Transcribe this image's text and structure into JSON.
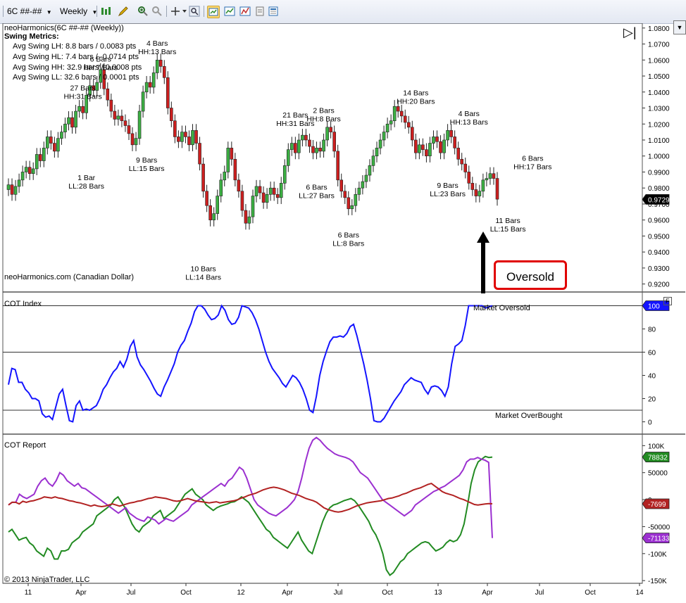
{
  "toolbar": {
    "instrument": "6C ##-##",
    "period": "Weekly",
    "icons": [
      "bar-type-icon",
      "pencil-icon",
      "zoom-in-icon",
      "zoom-out-icon",
      "crosshair-icon",
      "search-icon",
      "properties-icon",
      "data-box-icon",
      "strategy-icon",
      "print-icon"
    ]
  },
  "colors": {
    "up_candle": "#3cb043",
    "down_candle": "#cc1f1f",
    "cot_index_line": "#1414ff",
    "commercials": "#228b22",
    "noncommercials": "#9b30d0",
    "small_specs": "#b22222",
    "callout_border": "#e00000"
  },
  "price_panel": {
    "title": "neoHarmonics(6C ##-## (Weekly))",
    "metrics_title": "Swing Metrics:",
    "metrics": [
      "Avg Swing LH: 8.8 bars / 0.0083 pts",
      "Avg Swing HL: 7.4 bars / -0.0714 pts",
      "Avg Swing HH: 32.9 bars / 0.0008 pts",
      "Avg Swing LL: 32.6 bars / 0.0001 pts"
    ],
    "footer": "neoHarmonics.com (Canadian Dollar)",
    "last_price": "0.9729",
    "callout": "Oversold"
  },
  "cot_index_panel": {
    "title": "COT Index",
    "label_oversold": "Market Oversold",
    "label_overbought": "Market OverBought",
    "last_value": "100",
    "f_box": "F"
  },
  "cot_report_panel": {
    "title": "COT Report",
    "copyright": "© 2013 NinjaTrader, LLC",
    "last_values": [
      "78832",
      "-7699",
      "-71133"
    ]
  },
  "chart_data": [
    {
      "type": "candlestick",
      "title": "neoHarmonics(6C ##-## (Weekly))",
      "y_axis_ticks": [
        "1.0800",
        "1.0700",
        "1.0600",
        "1.0500",
        "1.0400",
        "1.0300",
        "1.0200",
        "1.0100",
        "1.0000",
        "0.9900",
        "0.9800",
        "0.9700",
        "0.9600",
        "0.9500",
        "0.9400",
        "0.9300",
        "0.9200"
      ],
      "ylim": [
        0.915,
        1.083
      ],
      "x_axis_ticks": [
        "11",
        "Apr",
        "Jul",
        "Oct",
        "12",
        "Apr",
        "Jul",
        "Oct",
        "13",
        "Apr",
        "Jul",
        "Oct",
        "14"
      ],
      "closes": [
        0.982,
        0.976,
        0.981,
        0.985,
        0.99,
        0.993,
        0.989,
        0.992,
        1.001,
        0.997,
        1.005,
        1.012,
        1.008,
        1.003,
        1.011,
        1.015,
        1.02,
        1.024,
        1.018,
        1.028,
        1.031,
        1.027,
        1.038,
        1.044,
        1.041,
        1.046,
        1.054,
        1.042,
        1.035,
        1.028,
        1.023,
        1.025,
        1.022,
        1.019,
        1.014,
        1.007,
        1.011,
        1.028,
        1.04,
        1.046,
        1.043,
        1.052,
        1.06,
        1.056,
        1.049,
        1.03,
        1.022,
        1.012,
        1.009,
        1.015,
        1.012,
        1.007,
        1.016,
        1.008,
        0.995,
        0.978,
        0.969,
        0.96,
        0.964,
        0.975,
        0.985,
        0.99,
        1.005,
        0.998,
        0.985,
        0.978,
        0.966,
        0.958,
        0.962,
        0.975,
        0.981,
        0.977,
        0.971,
        0.976,
        0.98,
        0.976,
        0.974,
        0.983,
        0.994,
        1.004,
        1.008,
        1.002,
        1.01,
        1.013,
        1.01,
        1.006,
        1.002,
        1.005,
        1.003,
        1.01,
        1.018,
        1.015,
        1.003,
        0.985,
        0.978,
        0.974,
        0.967,
        0.969,
        0.976,
        0.98,
        0.984,
        0.988,
        0.994,
        1.0,
        1.005,
        1.01,
        1.015,
        1.02,
        1.022,
        1.031,
        1.028,
        1.025,
        1.021,
        1.018,
        1.01,
        1.002,
        1.007,
        1.004,
        1.0,
        1.008,
        1.012,
        1.009,
        1.002,
        1.01,
        1.016,
        1.012,
        1.005,
        0.998,
        0.995,
        0.99,
        0.983,
        0.979,
        0.975,
        0.978,
        0.985,
        0.986,
        0.989,
        0.986,
        0.973
      ],
      "swing_labels": [
        {
          "line1": "27 Bars",
          "line2": "HH:31 Bars",
          "price": 1.041,
          "bar": 21
        },
        {
          "line1": "6 Bars",
          "line2": "HH:7 Bars",
          "price": 1.059,
          "bar": 26
        },
        {
          "line1": "4 Bars",
          "line2": "HH:13 Bars",
          "price": 1.069,
          "bar": 42
        },
        {
          "line1": "1 Bar",
          "line2": "LL:28 Bars",
          "price": 0.985,
          "bar": 22
        },
        {
          "line1": "9 Bars",
          "line2": "LL:15 Bars",
          "price": 0.996,
          "bar": 39
        },
        {
          "line1": "10 Bars",
          "line2": "LL:14 Bars",
          "price": 0.928,
          "bar": 55
        },
        {
          "line1": "21 Bars",
          "line2": "HH:31 Bars",
          "price": 1.024,
          "bar": 81
        },
        {
          "line1": "2 Bars",
          "line2": "HH:8 Bars",
          "price": 1.027,
          "bar": 89
        },
        {
          "line1": "6 Bars",
          "line2": "LL:27 Bars",
          "price": 0.979,
          "bar": 87
        },
        {
          "line1": "6 Bars",
          "line2": "LL:8 Bars",
          "price": 0.949,
          "bar": 96
        },
        {
          "line1": "14 Bars",
          "line2": "HH:20 Bars",
          "price": 1.038,
          "bar": 115
        },
        {
          "line1": "9 Bars",
          "line2": "LL:23 Bars",
          "price": 0.98,
          "bar": 124
        },
        {
          "line1": "4 Bars",
          "line2": "HH:13 Bars",
          "price": 1.025,
          "bar": 130
        },
        {
          "line1": "6 Bars",
          "line2": "HH:17 Bars",
          "price": 0.997,
          "bar": 148
        },
        {
          "line1": "11 Bars",
          "line2": "LL:15 Bars",
          "price": 0.958,
          "bar": 141
        }
      ]
    },
    {
      "type": "line",
      "title": "COT Index",
      "y_axis_ticks": [
        "100",
        "80",
        "60",
        "40",
        "20",
        "0"
      ],
      "ylim": [
        -10,
        110
      ],
      "levels": [
        100,
        60,
        10
      ],
      "series": [
        {
          "values": [
            32,
            46,
            45,
            34,
            34,
            28,
            25,
            20,
            20,
            18,
            7,
            4,
            5,
            2,
            13,
            24,
            28,
            14,
            1,
            0,
            14,
            18,
            10,
            11,
            10,
            12,
            14,
            20,
            28,
            32,
            38,
            43,
            46,
            52,
            47,
            54,
            65,
            70,
            56,
            49,
            45,
            40,
            35,
            29,
            24,
            22,
            30,
            36,
            43,
            50,
            60,
            66,
            70,
            78,
            85,
            95,
            100,
            100,
            97,
            92,
            88,
            89,
            92,
            100,
            96,
            88,
            84,
            85,
            90,
            100,
            99,
            98,
            94,
            88,
            80,
            70,
            60,
            52,
            46,
            42,
            38,
            33,
            30,
            35,
            40,
            38,
            34,
            28,
            20,
            10,
            8,
            22,
            40,
            52,
            61,
            69,
            73,
            73,
            74,
            73,
            76,
            82,
            84,
            74,
            62,
            50,
            36,
            20,
            1,
            0,
            0,
            3,
            8,
            13,
            18,
            22,
            26,
            32,
            35,
            38,
            36,
            35,
            34,
            28,
            24,
            30,
            31,
            30,
            27,
            22,
            30,
            50,
            65,
            67,
            70,
            83,
            100,
            100,
            100,
            100,
            100,
            98,
            99,
            100
          ]
        }
      ]
    },
    {
      "type": "line",
      "title": "COT Report",
      "y_axis_ticks": [
        "100K",
        "50000",
        "0",
        "-50000",
        "-100K",
        "-150K"
      ],
      "ylim": [
        -155000,
        120000
      ],
      "series": [
        {
          "values": [
            -60000,
            -55000,
            -65000,
            -75000,
            -72000,
            -70000,
            -80000,
            -85000,
            -95000,
            -100000,
            -105000,
            -90000,
            -95000,
            -110000,
            -110000,
            -95000,
            -95000,
            -92000,
            -80000,
            -75000,
            -70000,
            -60000,
            -55000,
            -50000,
            -45000,
            -30000,
            -25000,
            -20000,
            -15000,
            -10000,
            0,
            5000,
            -5000,
            -15000,
            -30000,
            -45000,
            -55000,
            -60000,
            -50000,
            -45000,
            -40000,
            -30000,
            -25000,
            -20000,
            -35000,
            -30000,
            -25000,
            -20000,
            -10000,
            0,
            10000,
            15000,
            20000,
            10000,
            5000,
            0,
            -10000,
            -15000,
            -20000,
            -15000,
            -12000,
            -10000,
            -8000,
            -5000,
            -4000,
            0,
            5000,
            0,
            -5000,
            -15000,
            -25000,
            -35000,
            -45000,
            -55000,
            -60000,
            -70000,
            -75000,
            -80000,
            -85000,
            -90000,
            -80000,
            -70000,
            -60000,
            -75000,
            -85000,
            -95000,
            -100000,
            -80000,
            -60000,
            -40000,
            -25000,
            -15000,
            -10000,
            -8000,
            -5000,
            -2000,
            0,
            2000,
            -2000,
            -10000,
            -20000,
            -30000,
            -40000,
            -55000,
            -65000,
            -80000,
            -100000,
            -130000,
            -140000,
            -135000,
            -125000,
            -115000,
            -110000,
            -100000,
            -95000,
            -90000,
            -85000,
            -80000,
            -78000,
            -80000,
            -88000,
            -95000,
            -92000,
            -88000,
            -80000,
            -75000,
            -78000,
            -75000,
            -65000,
            -45000,
            -10000,
            30000,
            55000,
            70000,
            75000,
            80000,
            78000,
            78832
          ]
        },
        {
          "values": [
            -10000,
            -5000,
            -5000,
            10000,
            5000,
            2000,
            6000,
            10000,
            25000,
            35000,
            40000,
            30000,
            25000,
            35000,
            50000,
            45000,
            35000,
            30000,
            25000,
            30000,
            22000,
            20000,
            15000,
            10000,
            5000,
            0,
            -5000,
            -10000,
            -15000,
            -20000,
            -25000,
            -20000,
            -15000,
            -25000,
            -30000,
            -35000,
            -38000,
            -40000,
            -32000,
            -35000,
            -38000,
            -45000,
            -40000,
            -35000,
            -38000,
            -40000,
            -35000,
            -30000,
            -25000,
            -20000,
            -10000,
            -5000,
            0,
            5000,
            10000,
            15000,
            20000,
            25000,
            30000,
            25000,
            35000,
            40000,
            50000,
            60000,
            55000,
            40000,
            20000,
            0,
            -10000,
            -15000,
            -20000,
            -25000,
            -28000,
            -30000,
            -25000,
            -20000,
            -15000,
            -8000,
            0,
            15000,
            40000,
            70000,
            95000,
            110000,
            115000,
            110000,
            102000,
            95000,
            90000,
            85000,
            82000,
            80000,
            78000,
            75000,
            70000,
            60000,
            50000,
            45000,
            40000,
            30000,
            20000,
            10000,
            0,
            -5000,
            -10000,
            -15000,
            -20000,
            -25000,
            -30000,
            -25000,
            -20000,
            -10000,
            -5000,
            0,
            5000,
            10000,
            15000,
            18000,
            22000,
            25000,
            30000,
            35000,
            40000,
            45000,
            55000,
            70000,
            75000,
            75000,
            78000,
            75000,
            73000,
            69000,
            -71133
          ]
        },
        {
          "values": [
            -10000,
            -5000,
            -5000,
            -8000,
            -3000,
            -5000,
            -3000,
            -2000,
            0,
            2000,
            5000,
            4000,
            3000,
            5000,
            3000,
            2000,
            0,
            -2000,
            -3000,
            -5000,
            -6000,
            -8000,
            -10000,
            -12000,
            -10000,
            -12000,
            -13000,
            -12000,
            -10000,
            -8000,
            -10000,
            -12000,
            -10000,
            -8000,
            -6000,
            -5000,
            -3000,
            -2000,
            0,
            2000,
            3000,
            5000,
            4000,
            3000,
            2000,
            0,
            -2000,
            -3000,
            -2000,
            0,
            2000,
            0,
            -2000,
            -3000,
            -4000,
            -5000,
            -6000,
            -5000,
            -4000,
            -6000,
            -5000,
            -4000,
            -3000,
            -2000,
            0,
            3000,
            5000,
            8000,
            10000,
            12000,
            15000,
            18000,
            20000,
            22000,
            23000,
            22000,
            20000,
            18000,
            15000,
            12000,
            10000,
            8000,
            5000,
            2000,
            0,
            -2000,
            -5000,
            -10000,
            -15000,
            -18000,
            -20000,
            -22000,
            -23000,
            -22000,
            -20000,
            -18000,
            -15000,
            -12000,
            -10000,
            -8000,
            -6000,
            -5000,
            -4000,
            -3000,
            -2000,
            0,
            2000,
            3000,
            5000,
            7000,
            10000,
            12000,
            15000,
            18000,
            20000,
            22000,
            25000,
            28000,
            30000,
            25000,
            20000,
            15000,
            12000,
            10000,
            8000,
            5000,
            2000,
            0,
            -3000,
            -6000,
            -9000,
            -10000,
            -9000,
            -8000,
            -7500,
            -7699
          ]
        }
      ]
    }
  ]
}
